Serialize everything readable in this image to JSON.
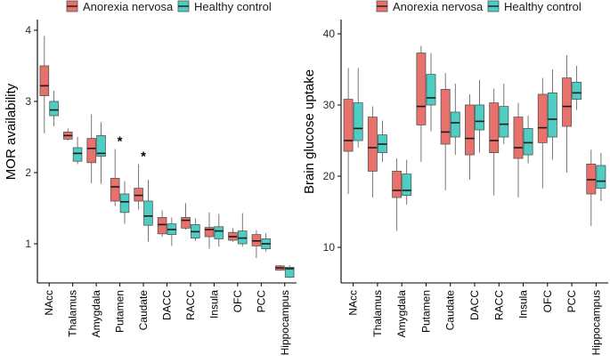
{
  "chart_data": [
    {
      "type": "boxplot",
      "title": "",
      "xlabel": "",
      "ylabel": "MOR availability",
      "ylim": [
        0.45,
        4.15
      ],
      "yticks": [
        1,
        2,
        3,
        4
      ],
      "tick_labels": [
        "1",
        "2",
        "3",
        "4"
      ],
      "legend": {
        "position": "top",
        "entries": [
          "Anorexia nervosa",
          "Healthy control"
        ]
      },
      "categories": [
        "NAcc",
        "Thalamus",
        "Amygdala",
        "Putamen",
        "Caudate",
        "DACC",
        "RACC",
        "Insula",
        "OFC",
        "PCC",
        "Hippocampus"
      ],
      "significance": [
        "",
        "",
        "",
        "*",
        "*",
        "",
        "",
        "",
        "",
        "",
        ""
      ],
      "series": [
        {
          "name": "Anorexia nervosa",
          "color": "#E8716B",
          "boxes": [
            {
              "min": 2.55,
              "q1": 3.08,
              "median": 3.22,
              "q3": 3.5,
              "max": 3.92
            },
            {
              "min": 2.45,
              "q1": 2.47,
              "median": 2.52,
              "q3": 2.57,
              "max": 2.62
            },
            {
              "min": 1.85,
              "q1": 2.14,
              "median": 2.34,
              "q3": 2.48,
              "max": 2.82
            },
            {
              "min": 1.53,
              "q1": 1.6,
              "median": 1.8,
              "q3": 1.92,
              "max": 2.33
            },
            {
              "min": 1.48,
              "q1": 1.6,
              "median": 1.68,
              "q3": 1.78,
              "max": 2.12
            },
            {
              "min": 1.1,
              "q1": 1.14,
              "median": 1.27,
              "q3": 1.37,
              "max": 1.47
            },
            {
              "min": 1.2,
              "q1": 1.22,
              "median": 1.33,
              "q3": 1.37,
              "max": 1.57
            },
            {
              "min": 0.93,
              "q1": 1.1,
              "median": 1.2,
              "q3": 1.23,
              "max": 1.44
            },
            {
              "min": 1.03,
              "q1": 1.05,
              "median": 1.1,
              "q3": 1.16,
              "max": 1.22
            },
            {
              "min": 0.8,
              "q1": 0.97,
              "median": 1.04,
              "q3": 1.13,
              "max": 1.19
            },
            {
              "min": 0.62,
              "q1": 0.63,
              "median": 0.66,
              "q3": 0.69,
              "max": 0.7
            }
          ]
        },
        {
          "name": "Healthy control",
          "color": "#4ECDC4",
          "boxes": [
            {
              "min": 2.65,
              "q1": 2.8,
              "median": 2.88,
              "q3": 3.0,
              "max": 3.15
            },
            {
              "min": 2.12,
              "q1": 2.16,
              "median": 2.27,
              "q3": 2.35,
              "max": 2.5
            },
            {
              "min": 1.84,
              "q1": 2.23,
              "median": 2.27,
              "q3": 2.52,
              "max": 2.71
            },
            {
              "min": 1.28,
              "q1": 1.44,
              "median": 1.59,
              "q3": 1.7,
              "max": 1.88
            },
            {
              "min": 1.03,
              "q1": 1.26,
              "median": 1.39,
              "q3": 1.6,
              "max": 1.9
            },
            {
              "min": 0.97,
              "q1": 1.13,
              "median": 1.2,
              "q3": 1.28,
              "max": 1.37
            },
            {
              "min": 1.04,
              "q1": 1.08,
              "median": 1.17,
              "q3": 1.27,
              "max": 1.36
            },
            {
              "min": 0.96,
              "q1": 1.07,
              "median": 1.18,
              "q3": 1.24,
              "max": 1.42
            },
            {
              "min": 0.96,
              "q1": 1.0,
              "median": 1.08,
              "q3": 1.18,
              "max": 1.43
            },
            {
              "min": 0.89,
              "q1": 0.93,
              "median": 1.0,
              "q3": 1.07,
              "max": 1.15
            },
            {
              "min": 0.52,
              "q1": 0.53,
              "median": 0.65,
              "q3": 0.67,
              "max": 0.7
            }
          ]
        }
      ]
    },
    {
      "type": "boxplot",
      "title": "",
      "xlabel": "",
      "ylabel": "Brain glucose uptake",
      "ylim": [
        5,
        42
      ],
      "yticks": [
        10,
        20,
        30,
        40
      ],
      "tick_labels": [
        "10",
        "20",
        "30",
        "40"
      ],
      "legend": {
        "position": "top",
        "entries": [
          "Anorexia nervosa",
          "Healthy control"
        ]
      },
      "categories": [
        "NAcc",
        "Thalamus",
        "Amygdala",
        "Putamen",
        "Caudate",
        "DACC",
        "RACC",
        "Insula",
        "OFC",
        "PCC",
        "Hippocampus"
      ],
      "series": [
        {
          "name": "Anorexia nervosa",
          "color": "#E8716B",
          "boxes": [
            {
              "min": 17.5,
              "q1": 23.5,
              "median": 25.0,
              "q3": 30.8,
              "max": 35.2
            },
            {
              "min": 17.0,
              "q1": 20.7,
              "median": 24.0,
              "q3": 28.3,
              "max": 29.8
            },
            {
              "min": 12.3,
              "q1": 17.0,
              "median": 18.0,
              "q3": 20.7,
              "max": 22.5
            },
            {
              "min": 22.0,
              "q1": 27.2,
              "median": 29.8,
              "q3": 37.3,
              "max": 38.3
            },
            {
              "min": 18.0,
              "q1": 24.5,
              "median": 26.2,
              "q3": 32.2,
              "max": 34.5
            },
            {
              "min": 19.5,
              "q1": 23.0,
              "median": 25.3,
              "q3": 30.0,
              "max": 31.5
            },
            {
              "min": 17.3,
              "q1": 23.3,
              "median": 25.0,
              "q3": 30.3,
              "max": 32.3
            },
            {
              "min": 17.0,
              "q1": 22.5,
              "median": 24.0,
              "q3": 28.3,
              "max": 30.3
            },
            {
              "min": 18.3,
              "q1": 24.7,
              "median": 26.8,
              "q3": 31.5,
              "max": 33.8
            },
            {
              "min": 20.5,
              "q1": 27.0,
              "median": 29.8,
              "q3": 33.8,
              "max": 37.0
            },
            {
              "min": 13.0,
              "q1": 17.5,
              "median": 19.5,
              "q3": 21.7,
              "max": 23.7
            }
          ]
        },
        {
          "name": "Healthy control",
          "color": "#4ECDC4",
          "boxes": [
            {
              "min": 24.0,
              "q1": 25.0,
              "median": 26.7,
              "q3": 30.3,
              "max": 35.2
            },
            {
              "min": 22.0,
              "q1": 23.3,
              "median": 24.5,
              "q3": 25.8,
              "max": 27.8
            },
            {
              "min": 16.0,
              "q1": 17.3,
              "median": 18.0,
              "q3": 20.3,
              "max": 22.3
            },
            {
              "min": 26.3,
              "q1": 30.0,
              "median": 31.0,
              "q3": 34.3,
              "max": 37.3
            },
            {
              "min": 23.0,
              "q1": 25.5,
              "median": 27.5,
              "q3": 29.0,
              "max": 33.0
            },
            {
              "min": 23.3,
              "q1": 26.5,
              "median": 27.7,
              "q3": 30.0,
              "max": 33.5
            },
            {
              "min": 24.5,
              "q1": 25.5,
              "median": 27.3,
              "q3": 29.8,
              "max": 33.0
            },
            {
              "min": 21.8,
              "q1": 23.0,
              "median": 24.7,
              "q3": 26.7,
              "max": 28.5
            },
            {
              "min": 22.3,
              "q1": 25.5,
              "median": 28.0,
              "q3": 31.7,
              "max": 35.0
            },
            {
              "min": 29.3,
              "q1": 30.8,
              "median": 31.7,
              "q3": 33.2,
              "max": 35.5
            },
            {
              "min": 16.5,
              "q1": 18.3,
              "median": 19.3,
              "q3": 21.5,
              "max": 23.3
            }
          ]
        }
      ]
    }
  ]
}
